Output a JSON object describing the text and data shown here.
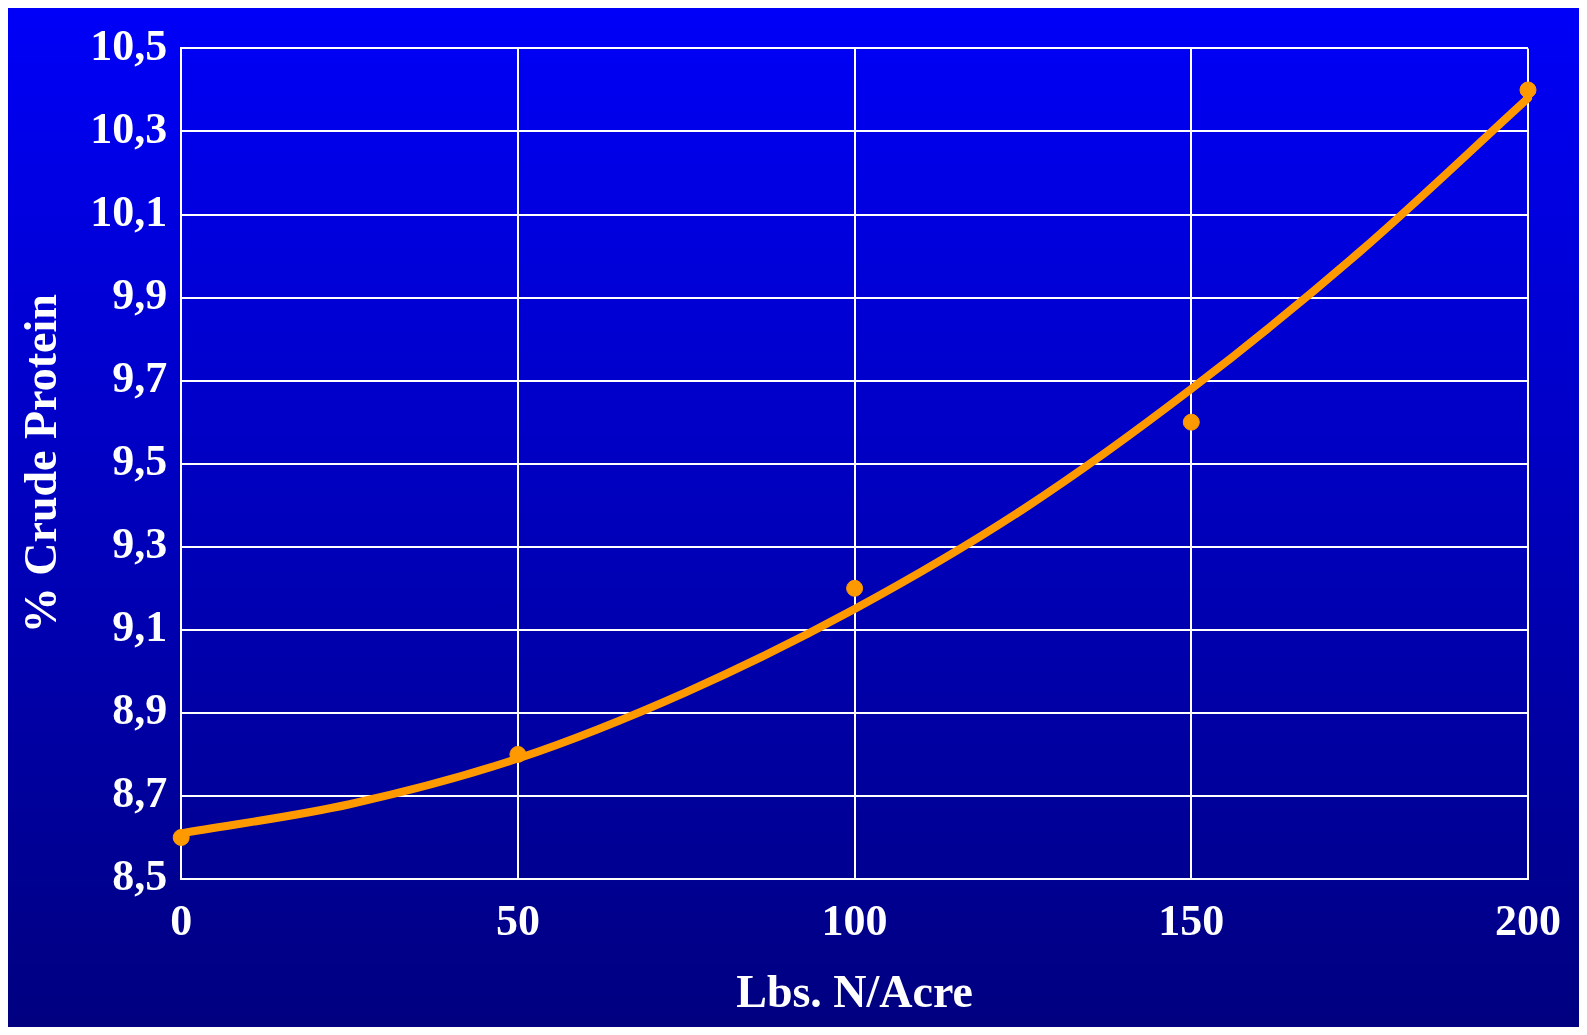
{
  "chart_data": {
    "type": "scatter",
    "xlabel": "Lbs. N/Acre",
    "ylabel": "% Crude Protein",
    "series": [
      {
        "color": "#ff9900",
        "x": [
          0,
          50,
          100,
          150,
          200
        ],
        "values": [
          8.6,
          8.8,
          9.2,
          9.6,
          10.4
        ],
        "marker": "circle"
      },
      {
        "type": "line",
        "color": "#ff9900",
        "x": [
          0,
          25,
          50,
          75,
          100,
          125,
          150,
          175,
          200
        ],
        "values": [
          8.61,
          8.68,
          8.79,
          8.95,
          9.15,
          9.39,
          9.68,
          10.01,
          10.38
        ],
        "marker": "none",
        "line_style": "solid"
      }
    ],
    "xlim": [
      0,
      200
    ],
    "xticks": [
      0,
      50,
      100,
      150,
      200
    ],
    "ylim": [
      8.5,
      10.5
    ],
    "yticks": [
      {
        "value": 8.5,
        "label": "8,5"
      },
      {
        "value": 8.7,
        "label": "8,7"
      },
      {
        "value": 8.9,
        "label": "8,9"
      },
      {
        "value": 9.1,
        "label": "9,1"
      },
      {
        "value": 9.3,
        "label": "9,3"
      },
      {
        "value": 9.5,
        "label": "9,5"
      },
      {
        "value": 9.7,
        "label": "9,7"
      },
      {
        "value": 9.9,
        "label": "9,9"
      },
      {
        "value": 10.1,
        "label": "10,1"
      },
      {
        "value": 10.3,
        "label": "10,3"
      },
      {
        "value": 10.5,
        "label": "10,5"
      }
    ],
    "grid": true,
    "legend": false
  }
}
